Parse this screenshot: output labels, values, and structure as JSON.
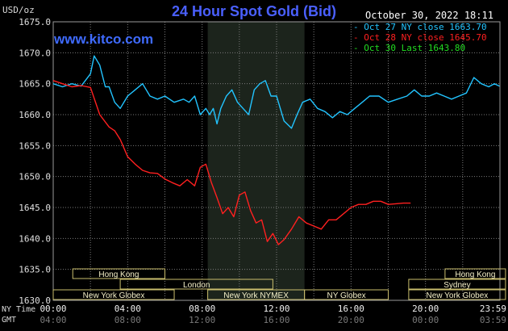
{
  "title": "24 Hour Spot Gold (Bid)",
  "unit_label": "USD/oz",
  "datetime": "October 30, 2022 18:11",
  "brand": "www.kitco.com",
  "timezone_labels": {
    "ny": "NY Time",
    "gmt": "GMT"
  },
  "colors": {
    "background": "#000000",
    "grid": "#7a7a7a",
    "ny_session_shade": "#1c241c",
    "title": "#4a60ff",
    "brand": "#3f6bff",
    "market_box": "#f5f0c8",
    "market_outline": "#c9bd6d"
  },
  "chart_data": {
    "type": "line",
    "title": "24 Hour Spot Gold (Bid)",
    "ylabel": "USD/oz",
    "xlabel": "",
    "ylim": [
      1630,
      1675
    ],
    "y_ticks": [
      "1630.0",
      "1635.0",
      "1640.0",
      "1645.0",
      "1650.0",
      "1655.0",
      "1660.0",
      "1665.0",
      "1670.0",
      "1675.0"
    ],
    "x_ticks_ny": [
      "00:00",
      "04:00",
      "08:00",
      "12:00",
      "16:00",
      "20:00",
      "23:59"
    ],
    "x_ticks_gmt": [
      "04:00",
      "08:00",
      "12:00",
      "16:00",
      "20:00",
      "00:00",
      "03:59"
    ],
    "grid": true,
    "legend_position": "top-right",
    "legend": [
      {
        "text": "Oct 27 NY close 1663.70",
        "color": "#22c4ff"
      },
      {
        "text": "Oct 28 NY close 1645.70",
        "color": "#ff2020"
      },
      {
        "text": "Oct 30 Last 1643.80",
        "color": "#22dd22"
      }
    ],
    "shaded_session": {
      "label": "New York NYMEX",
      "start_hour": 8.3,
      "end_hour": 13.5
    },
    "series": [
      {
        "name": "Oct 27",
        "color": "#22c4ff",
        "x": [
          0,
          0.5,
          1,
          1.5,
          2,
          2.2,
          2.5,
          2.8,
          3,
          3.3,
          3.6,
          4,
          4.4,
          4.8,
          5.2,
          5.6,
          6,
          6.5,
          7,
          7.3,
          7.6,
          7.9,
          8.2,
          8.4,
          8.6,
          8.8,
          9,
          9.3,
          9.6,
          9.9,
          10.2,
          10.5,
          10.8,
          11.1,
          11.4,
          11.7,
          12,
          12.4,
          12.8,
          13.1,
          13.4,
          13.8,
          14.2,
          14.6,
          15,
          15.4,
          15.8,
          16.2,
          16.6,
          17,
          17.5,
          18,
          18.5,
          19,
          19.4,
          19.8,
          20.2,
          20.6,
          21,
          21.4,
          21.8,
          22.2,
          22.6,
          23,
          23.4,
          23.7,
          23.98
        ],
        "y": [
          1665,
          1664.5,
          1665,
          1664.6,
          1666.6,
          1669.5,
          1668,
          1664.5,
          1664.5,
          1662,
          1661,
          1663,
          1664,
          1665,
          1663,
          1662.5,
          1663,
          1662,
          1662.5,
          1662,
          1663,
          1660,
          1661,
          1660,
          1661,
          1658.5,
          1661,
          1663,
          1664,
          1662,
          1661,
          1660,
          1664,
          1665,
          1665.5,
          1663,
          1663,
          1659,
          1657.8,
          1660,
          1662,
          1662.5,
          1661,
          1660.5,
          1659.5,
          1660.5,
          1660,
          1661,
          1662,
          1663,
          1663,
          1662,
          1662.5,
          1663,
          1664,
          1663,
          1663,
          1663.5,
          1663,
          1662.5,
          1663,
          1663.5,
          1666,
          1665,
          1664.5,
          1665,
          1664.6
        ]
      },
      {
        "name": "Oct 28",
        "color": "#ff2020",
        "x": [
          0,
          0.5,
          1,
          1.5,
          2,
          2.5,
          3,
          3.3,
          3.6,
          4,
          4.4,
          4.8,
          5.2,
          5.6,
          6,
          6.4,
          6.8,
          7.2,
          7.6,
          7.9,
          8.2,
          8.5,
          8.8,
          9.1,
          9.4,
          9.7,
          10,
          10.3,
          10.6,
          10.9,
          11.2,
          11.5,
          11.8,
          12.1,
          12.4,
          12.8,
          13.2,
          13.6,
          14,
          14.4,
          14.8,
          15.2,
          15.6,
          16,
          16.4,
          16.8,
          17.2,
          17.6,
          18,
          18.4,
          18.8,
          19.2
        ],
        "y": [
          1665.5,
          1665,
          1664.5,
          1664.7,
          1664.4,
          1660,
          1658,
          1657.4,
          1656,
          1653.2,
          1652,
          1651,
          1650.6,
          1650.5,
          1649.6,
          1649,
          1648.5,
          1649.5,
          1648.5,
          1651.5,
          1652,
          1649,
          1646.6,
          1644,
          1645,
          1643.5,
          1647,
          1647.5,
          1644.5,
          1642.5,
          1643,
          1639.5,
          1640.8,
          1639,
          1639.8,
          1641.5,
          1643.5,
          1642.5,
          1642,
          1641.5,
          1643,
          1643,
          1644,
          1645,
          1645.5,
          1645.5,
          1646,
          1646,
          1645.5,
          1645.6,
          1645.7,
          1645.7
        ]
      }
    ],
    "markets": [
      {
        "name": "Hong Kong",
        "start_hour": 1.05,
        "end_hour": 6.0,
        "row": 1
      },
      {
        "name": "London",
        "start_hour": 3.6,
        "end_hour": 11.8,
        "row": 2
      },
      {
        "name": "New York Globex",
        "start_hour": 0,
        "end_hour": 6.5,
        "row": 3
      },
      {
        "name": "New York NYMEX",
        "start_hour": 8.3,
        "end_hour": 13.5,
        "row": 3
      },
      {
        "name": "NY Globex",
        "start_hour": 13.5,
        "end_hour": 18.0,
        "row": 3
      },
      {
        "name": "Hong Kong",
        "start_hour": 21.05,
        "end_hour": 24.3,
        "row": 1
      },
      {
        "name": "Sydney",
        "start_hour": 19.1,
        "end_hour": 24.3,
        "row": 2
      },
      {
        "name": "New York Globex",
        "start_hour": 19.1,
        "end_hour": 24.3,
        "row": 3
      }
    ]
  }
}
